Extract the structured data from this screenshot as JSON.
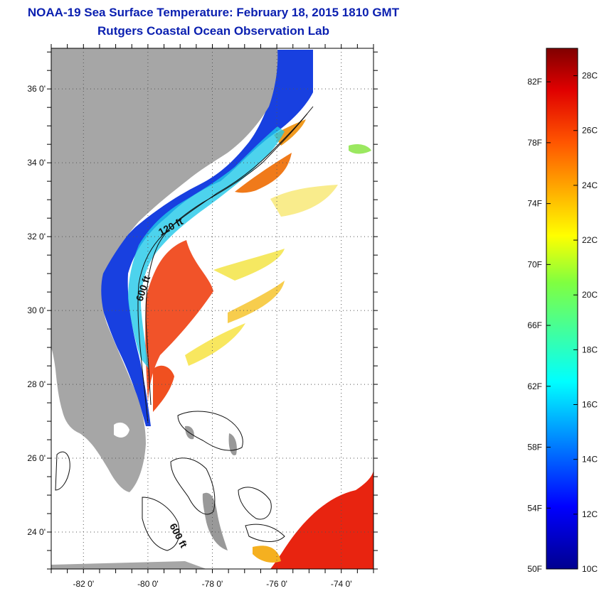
{
  "header": {
    "title": "NOAA-19 Sea Surface Temperature:  February 18, 2015 1810 GMT",
    "subtitle": "Rutgers Coastal Ocean Observation Lab"
  },
  "map": {
    "lat_ticks": [
      {
        "value": 36,
        "label": "36 0'"
      },
      {
        "value": 34,
        "label": "34 0'"
      },
      {
        "value": 32,
        "label": "32 0'"
      },
      {
        "value": 30,
        "label": "30 0'"
      },
      {
        "value": 28,
        "label": "28 0'"
      },
      {
        "value": 26,
        "label": "26 0'"
      },
      {
        "value": 24,
        "label": "24 0'"
      }
    ],
    "lon_ticks": [
      {
        "value": -82,
        "label": "-82 0'"
      },
      {
        "value": -80,
        "label": "-80 0'"
      },
      {
        "value": -78,
        "label": "-78 0'"
      },
      {
        "value": -76,
        "label": "-76 0'"
      },
      {
        "value": -74,
        "label": "-74 0'"
      }
    ],
    "lat_range": [
      23,
      37.1
    ],
    "lon_range": [
      -83,
      -73
    ],
    "isobath_labels": [
      "120 ft",
      "600 ft",
      "600 ft"
    ],
    "colors": {
      "land": "#a6a6a6",
      "grid": "#555555"
    }
  },
  "colorbar": {
    "fahrenheit_labels": [
      "82F",
      "78F",
      "74F",
      "70F",
      "66F",
      "62F",
      "58F",
      "54F",
      "50F"
    ],
    "celsius_labels": [
      "28C",
      "26C",
      "24C",
      "22C",
      "20C",
      "18C",
      "16C",
      "14C",
      "12C",
      "10C"
    ],
    "range_c": [
      10,
      29
    ],
    "colormap": "jet"
  }
}
